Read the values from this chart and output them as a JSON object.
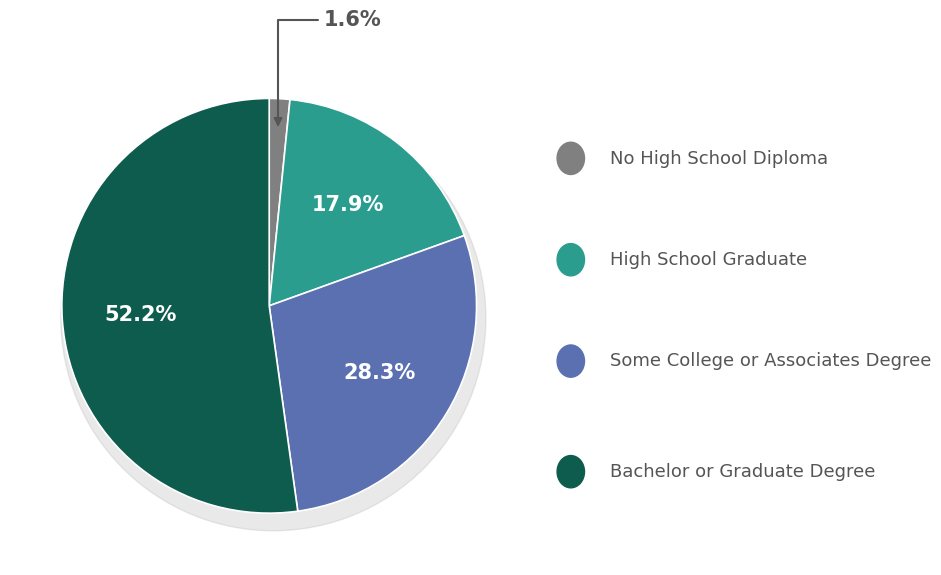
{
  "slices": [
    1.6,
    17.9,
    28.3,
    52.2
  ],
  "labels": [
    "1.6%",
    "17.9%",
    "28.3%",
    "52.2%"
  ],
  "colors": [
    "#808080",
    "#2a9d8f",
    "#5b70b0",
    "#0d5c4e"
  ],
  "legend_labels": [
    "No High School Diploma",
    "High School Graduate",
    "Some College or Associates Degree",
    "Bachelor or Graduate Degree"
  ],
  "legend_colors": [
    "#808080",
    "#2a9d8f",
    "#5b70b0",
    "#0d5c4e"
  ],
  "startangle": 90,
  "background_color": "#ffffff",
  "label_fontsize": 15,
  "label_color_inside": "#ffffff",
  "annotation_color": "#555555",
  "legend_fontsize": 13,
  "legend_label_color": "#555555"
}
